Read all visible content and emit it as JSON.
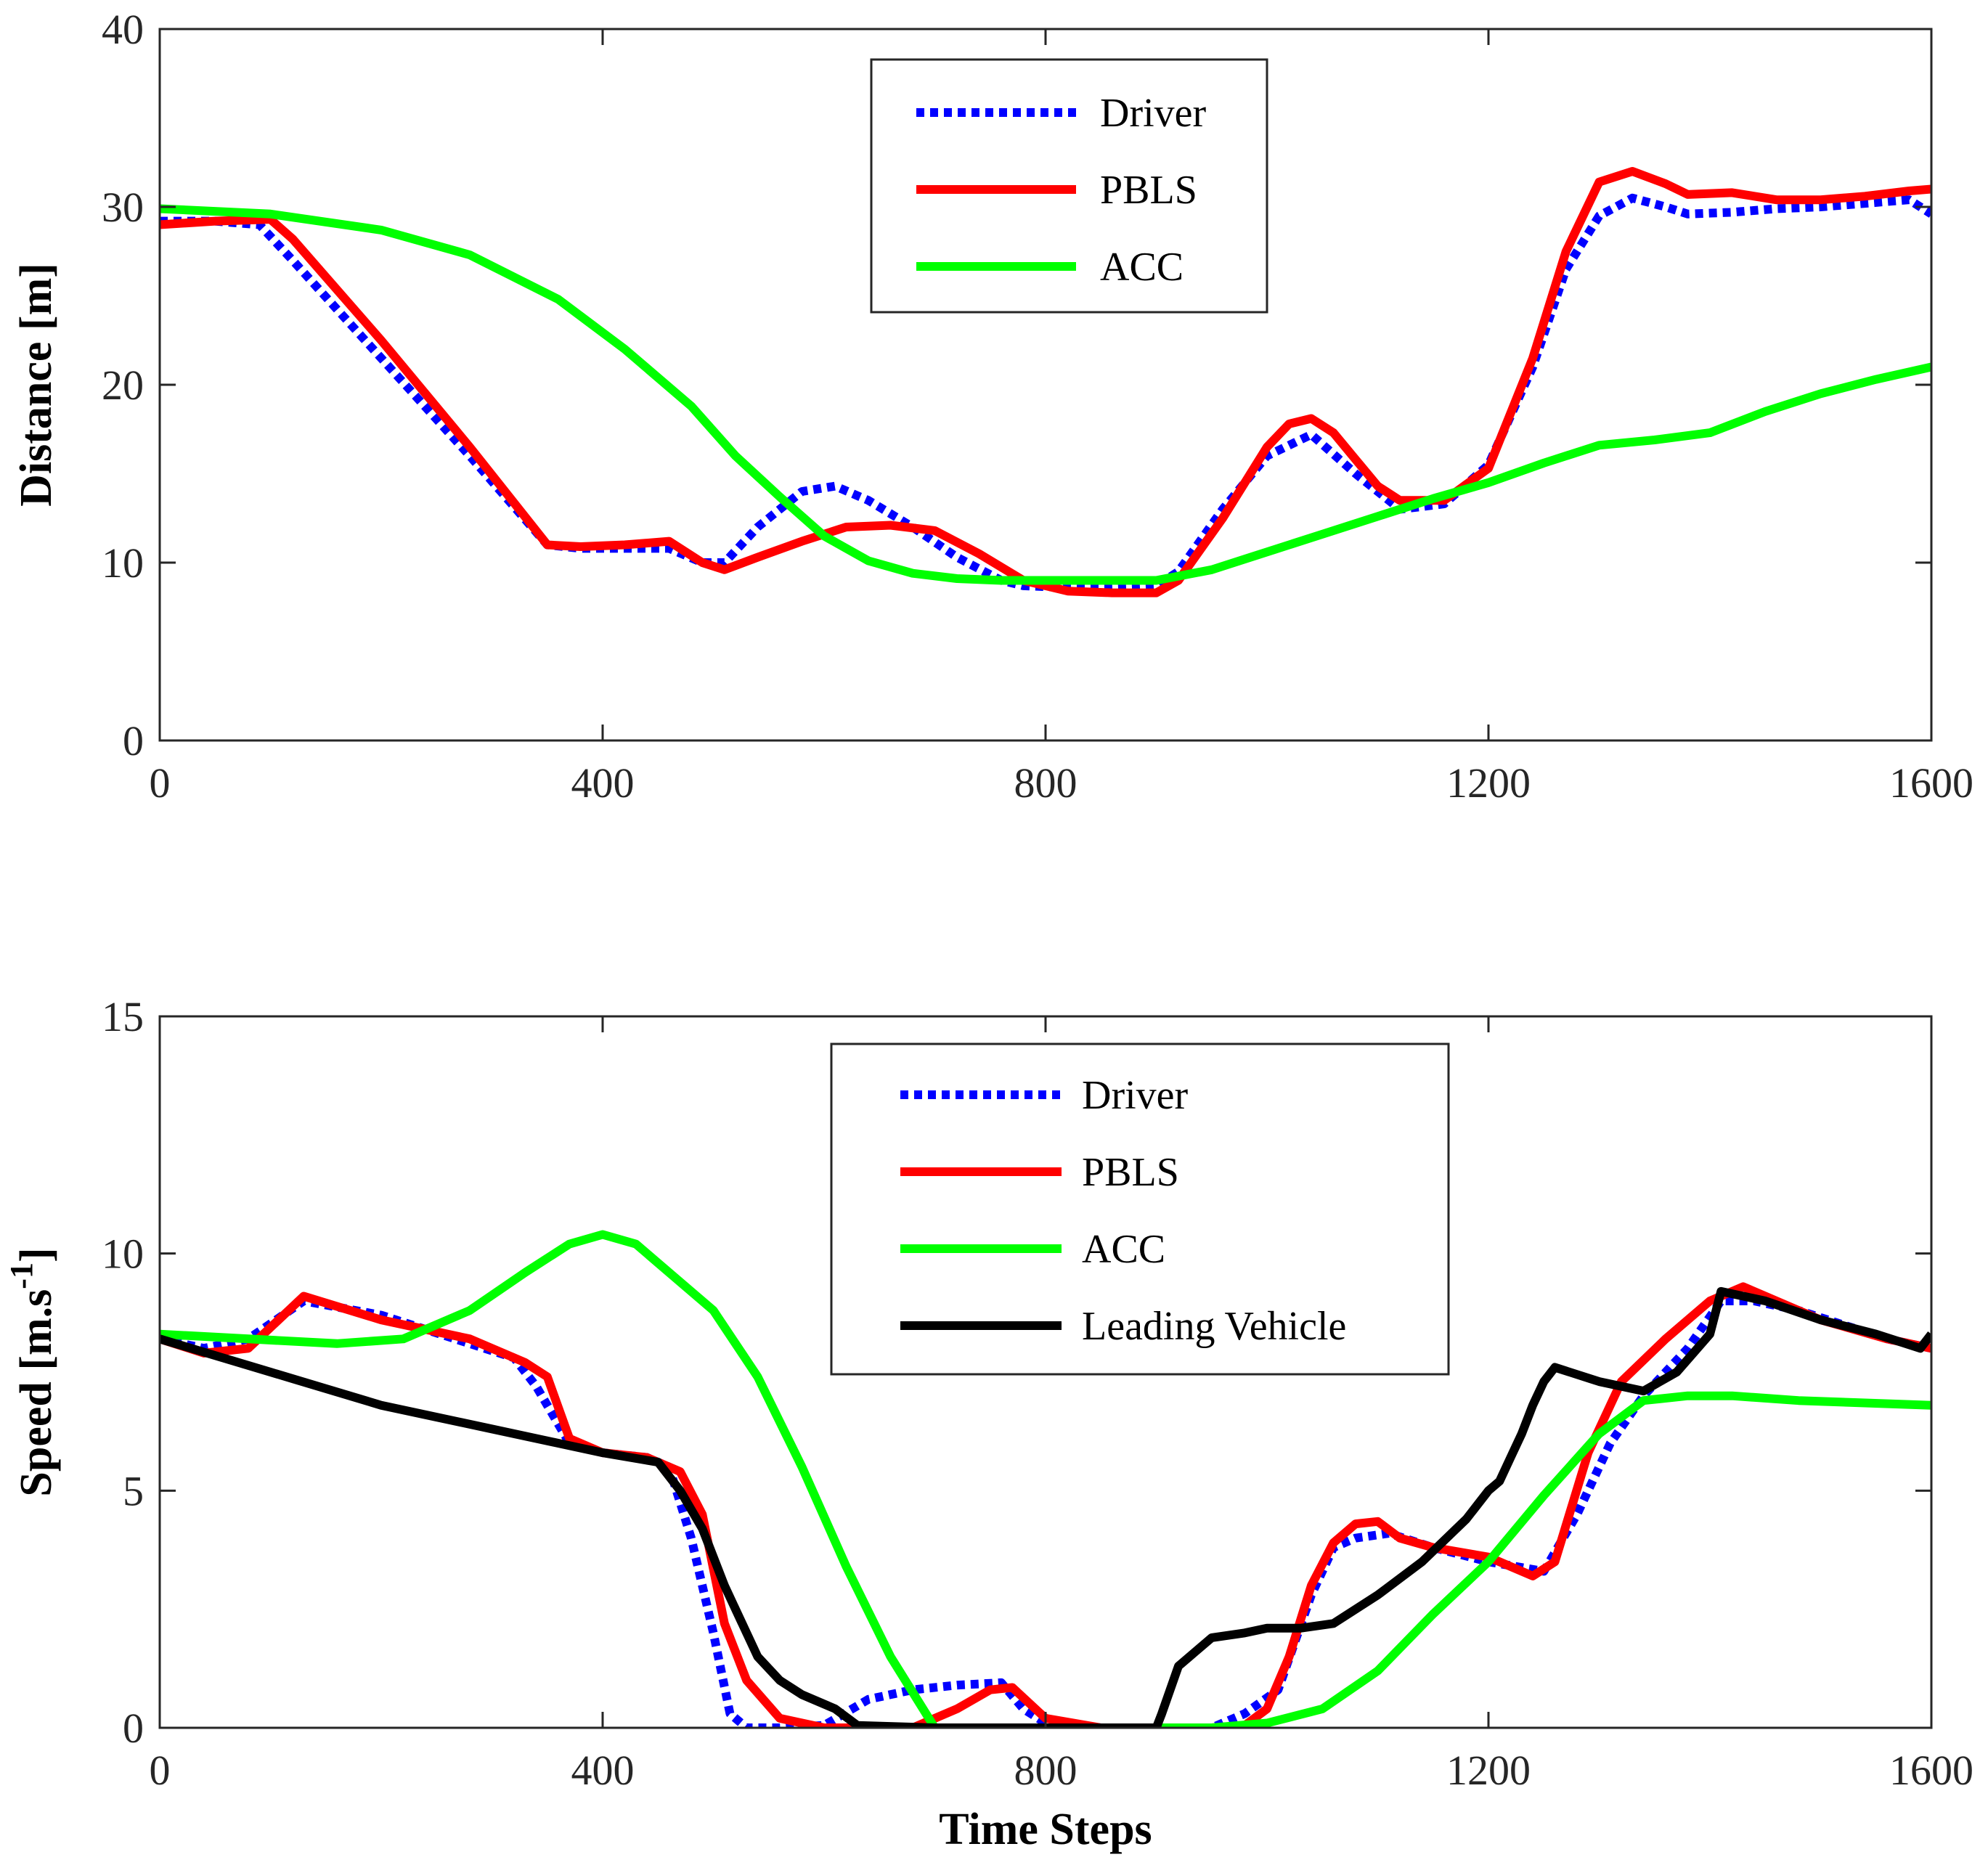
{
  "chart_data": [
    {
      "type": "line",
      "title": "",
      "xlabel": "",
      "ylabel": "Distance [m]",
      "xlim": [
        0,
        1600
      ],
      "ylim": [
        0,
        40
      ],
      "xticks": [
        0,
        400,
        800,
        1200,
        1600
      ],
      "yticks": [
        0,
        10,
        20,
        30,
        40
      ],
      "legend_position": "top-center",
      "series": [
        {
          "name": "Driver",
          "color": "#0000ff",
          "style": "dotted",
          "x": [
            0,
            50,
            90,
            120,
            200,
            280,
            350,
            380,
            420,
            460,
            490,
            510,
            540,
            580,
            610,
            640,
            680,
            720,
            760,
            780,
            820,
            860,
            900,
            920,
            960,
            1000,
            1040,
            1080,
            1120,
            1160,
            1200,
            1240,
            1270,
            1300,
            1330,
            1360,
            1380,
            1420,
            1460,
            1500,
            1540,
            1580,
            1600
          ],
          "y": [
            29.2,
            29.2,
            29.0,
            27.0,
            21.5,
            16.0,
            11.0,
            10.8,
            10.8,
            10.8,
            10.0,
            10.0,
            12.0,
            14.0,
            14.3,
            13.5,
            12.0,
            10.3,
            9.0,
            8.7,
            8.6,
            8.6,
            8.7,
            9.5,
            13.0,
            16.0,
            17.2,
            15.0,
            13.0,
            13.3,
            15.5,
            21.0,
            26.5,
            29.5,
            30.5,
            30.0,
            29.6,
            29.7,
            29.9,
            30.0,
            30.2,
            30.4,
            29.6
          ]
        },
        {
          "name": "PBLS",
          "color": "#ff0000",
          "style": "solid",
          "x": [
            0,
            50,
            100,
            120,
            200,
            280,
            350,
            380,
            420,
            460,
            490,
            510,
            540,
            580,
            620,
            660,
            700,
            740,
            780,
            820,
            860,
            900,
            920,
            960,
            1000,
            1020,
            1040,
            1060,
            1080,
            1100,
            1120,
            1160,
            1200,
            1240,
            1270,
            1300,
            1330,
            1360,
            1380,
            1420,
            1460,
            1500,
            1540,
            1580,
            1600
          ],
          "y": [
            29.0,
            29.2,
            29.3,
            28.2,
            22.5,
            16.5,
            11.0,
            10.9,
            11.0,
            11.2,
            10.0,
            9.6,
            10.3,
            11.2,
            12.0,
            12.1,
            11.8,
            10.5,
            9.0,
            8.4,
            8.3,
            8.3,
            9.0,
            12.5,
            16.5,
            17.8,
            18.1,
            17.3,
            15.8,
            14.3,
            13.5,
            13.5,
            15.3,
            21.5,
            27.5,
            31.4,
            32.0,
            31.3,
            30.7,
            30.8,
            30.4,
            30.4,
            30.6,
            30.9,
            31.0
          ]
        },
        {
          "name": "ACC",
          "color": "#00ff00",
          "style": "solid",
          "x": [
            0,
            100,
            200,
            280,
            360,
            420,
            480,
            520,
            560,
            600,
            640,
            680,
            720,
            760,
            800,
            850,
            900,
            950,
            1000,
            1050,
            1100,
            1150,
            1200,
            1250,
            1300,
            1350,
            1400,
            1450,
            1500,
            1550,
            1600
          ],
          "y": [
            29.9,
            29.6,
            28.7,
            27.3,
            24.8,
            22.0,
            18.8,
            16.0,
            13.7,
            11.5,
            10.1,
            9.4,
            9.1,
            9.0,
            9.0,
            9.0,
            9.0,
            9.6,
            10.6,
            11.6,
            12.6,
            13.6,
            14.5,
            15.6,
            16.6,
            16.9,
            17.3,
            18.5,
            19.5,
            20.3,
            21.0
          ]
        }
      ]
    },
    {
      "type": "line",
      "title": "",
      "xlabel": "Time Steps",
      "ylabel": "Speed [m.s",
      "ylabel_superscript": "-1",
      "ylabel_suffix": "]",
      "xlim": [
        0,
        1600
      ],
      "ylim": [
        0,
        15
      ],
      "xticks": [
        0,
        400,
        800,
        1200,
        1600
      ],
      "yticks": [
        0,
        5,
        10,
        15
      ],
      "legend_position": "top-center",
      "series": [
        {
          "name": "Driver",
          "color": "#0000ff",
          "style": "dotted",
          "x": [
            0,
            40,
            80,
            130,
            200,
            280,
            320,
            340,
            370,
            400,
            440,
            460,
            480,
            500,
            515,
            530,
            560,
            600,
            640,
            680,
            720,
            760,
            780,
            800,
            850,
            900,
            950,
            980,
            1010,
            1040,
            1060,
            1080,
            1110,
            1150,
            1200,
            1250,
            1280,
            1310,
            1340,
            1380,
            1410,
            1440,
            1480,
            1520,
            1560,
            1600
          ],
          "y": [
            8.2,
            8.0,
            8.2,
            9.0,
            8.7,
            8.1,
            7.8,
            7.2,
            6.0,
            5.8,
            5.7,
            5.5,
            4.0,
            2.0,
            0.3,
            0.0,
            0.0,
            0.05,
            0.6,
            0.8,
            0.9,
            0.95,
            0.4,
            0.1,
            0.0,
            0.0,
            0.0,
            0.3,
            0.8,
            2.8,
            3.8,
            4.0,
            4.1,
            3.8,
            3.5,
            3.3,
            4.5,
            6.0,
            7.0,
            8.0,
            9.0,
            9.0,
            8.8,
            8.5,
            8.2,
            8.0
          ]
        },
        {
          "name": "PBLS",
          "color": "#ff0000",
          "style": "solid",
          "x": [
            0,
            40,
            80,
            130,
            200,
            280,
            330,
            350,
            370,
            400,
            440,
            470,
            490,
            510,
            530,
            560,
            600,
            640,
            680,
            720,
            750,
            770,
            800,
            850,
            900,
            950,
            980,
            1000,
            1020,
            1040,
            1060,
            1080,
            1100,
            1120,
            1150,
            1200,
            1240,
            1260,
            1290,
            1320,
            1360,
            1400,
            1430,
            1460,
            1500,
            1560,
            1600
          ],
          "y": [
            8.2,
            7.9,
            8.0,
            9.1,
            8.6,
            8.2,
            7.7,
            7.4,
            6.1,
            5.8,
            5.7,
            5.4,
            4.5,
            2.2,
            1.0,
            0.2,
            0.0,
            0.0,
            0.0,
            0.4,
            0.8,
            0.85,
            0.2,
            0.0,
            0.0,
            0.0,
            0.05,
            0.4,
            1.5,
            3.0,
            3.9,
            4.3,
            4.35,
            4.0,
            3.8,
            3.6,
            3.2,
            3.5,
            5.8,
            7.3,
            8.2,
            9.0,
            9.3,
            9.0,
            8.6,
            8.2,
            8.0
          ]
        },
        {
          "name": "ACC",
          "color": "#00ff00",
          "style": "solid",
          "x": [
            0,
            80,
            160,
            220,
            280,
            330,
            370,
            400,
            430,
            460,
            500,
            540,
            580,
            620,
            660,
            700,
            730,
            760,
            800,
            850,
            900,
            950,
            1000,
            1050,
            1100,
            1150,
            1200,
            1250,
            1300,
            1340,
            1380,
            1420,
            1480,
            1540,
            1600
          ],
          "y": [
            8.3,
            8.2,
            8.1,
            8.2,
            8.8,
            9.6,
            10.2,
            10.4,
            10.2,
            9.6,
            8.8,
            7.4,
            5.5,
            3.4,
            1.5,
            0.0,
            0.0,
            0.0,
            0.0,
            0.0,
            0.0,
            0.0,
            0.1,
            0.4,
            1.2,
            2.4,
            3.5,
            4.9,
            6.2,
            6.9,
            7.0,
            7.0,
            6.9,
            6.85,
            6.8
          ]
        },
        {
          "name": "Leading Vehicle",
          "color": "#000000",
          "style": "solid",
          "x": [
            0,
            100,
            200,
            300,
            400,
            450,
            470,
            490,
            510,
            520,
            540,
            560,
            580,
            610,
            630,
            700,
            800,
            900,
            905,
            920,
            950,
            980,
            1000,
            1030,
            1060,
            1100,
            1140,
            1180,
            1200,
            1210,
            1220,
            1230,
            1240,
            1250,
            1260,
            1300,
            1340,
            1370,
            1400,
            1410,
            1450,
            1500,
            1550,
            1590,
            1600
          ],
          "y": [
            8.2,
            7.5,
            6.8,
            6.3,
            5.8,
            5.6,
            5.0,
            4.2,
            3.0,
            2.5,
            1.5,
            1.0,
            0.7,
            0.4,
            0.05,
            0.0,
            0.0,
            0.0,
            0.3,
            1.3,
            1.9,
            2.0,
            2.1,
            2.1,
            2.2,
            2.8,
            3.5,
            4.4,
            5.0,
            5.2,
            5.7,
            6.2,
            6.8,
            7.3,
            7.6,
            7.3,
            7.1,
            7.5,
            8.3,
            9.2,
            9.0,
            8.6,
            8.3,
            8.0,
            8.3
          ]
        }
      ]
    }
  ]
}
